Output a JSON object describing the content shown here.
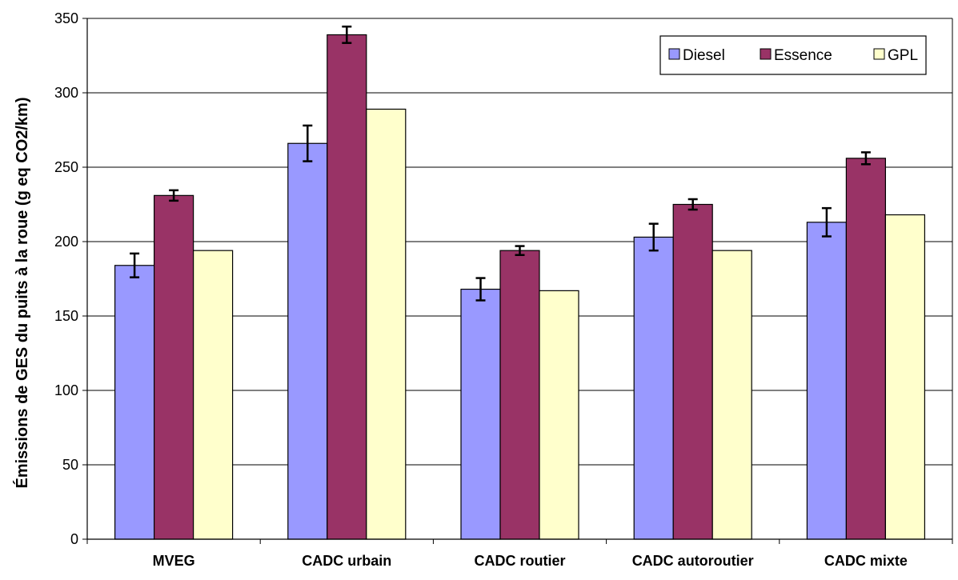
{
  "chart_data": {
    "type": "bar",
    "title": "",
    "xlabel": "",
    "ylabel": "Émissions de GES du puits à la roue (g eq CO2/km)",
    "ylim": [
      0,
      350
    ],
    "yticks": [
      0,
      50,
      100,
      150,
      200,
      250,
      300,
      350
    ],
    "grid": true,
    "legend_position": "top-right",
    "categories": [
      "MVEG",
      "CADC urbain",
      "CADC routier",
      "CADC autoroutier",
      "CADC mixte"
    ],
    "series": [
      {
        "name": "Diesel",
        "color": "#9999FF",
        "values": [
          184,
          266,
          168,
          203,
          213
        ],
        "error": [
          8,
          12,
          7.5,
          9,
          9.5
        ]
      },
      {
        "name": "Essence",
        "color": "#993366",
        "values": [
          231,
          339,
          194,
          225,
          256
        ],
        "error": [
          3.5,
          5.5,
          3,
          3.5,
          4
        ]
      },
      {
        "name": "GPL",
        "color": "#FFFFCC",
        "values": [
          194,
          289,
          167,
          194,
          218
        ],
        "error": null
      }
    ]
  }
}
